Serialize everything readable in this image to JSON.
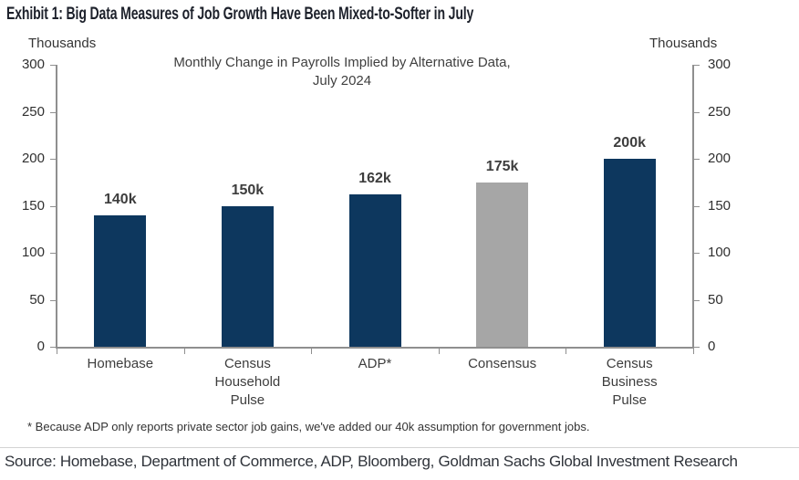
{
  "exhibit": {
    "title": "Exhibit 1: Big Data Measures of Job Growth Have Been Mixed-to-Softer in July",
    "footnote": "* Because ADP only reports private sector job gains, we've added our 40k assumption for government jobs.",
    "source": "Source: Homebase, Department of Commerce, ADP, Bloomberg, Goldman Sachs Global Investment Research"
  },
  "chart_data": {
    "type": "bar",
    "title": "Monthly Change in Payrolls Implied by Alternative Data, July 2024",
    "title_lines": [
      "Monthly Change in Payrolls Implied by Alternative Data,",
      "July 2024"
    ],
    "left_axis_label": "Thousands",
    "right_axis_label": "Thousands",
    "categories": [
      "Homebase",
      "Census Household Pulse",
      "ADP*",
      "Consensus",
      "Census Business Pulse"
    ],
    "category_lines": [
      [
        "Homebase"
      ],
      [
        "Census",
        "Household",
        "Pulse"
      ],
      [
        "ADP*"
      ],
      [
        "Consensus"
      ],
      [
        "Census",
        "Business",
        "Pulse"
      ]
    ],
    "values": [
      140,
      150,
      162,
      175,
      200
    ],
    "value_labels": [
      "140k",
      "150k",
      "162k",
      "175k",
      "200k"
    ],
    "bar_colors": [
      "#0d375e",
      "#0d375e",
      "#0d375e",
      "#a6a6a6",
      "#0d375e"
    ],
    "ylim": [
      0,
      300
    ],
    "yticks": [
      0,
      50,
      100,
      150,
      200,
      250,
      300
    ],
    "ytick_interval": 50,
    "grid": false,
    "legend": "none",
    "colors": {
      "bar_navy": "#0d375e",
      "bar_gray": "#a6a6a6",
      "axis": "#8f8f8f",
      "text": "#3d3d3d",
      "title_text": "#1d212b"
    }
  }
}
